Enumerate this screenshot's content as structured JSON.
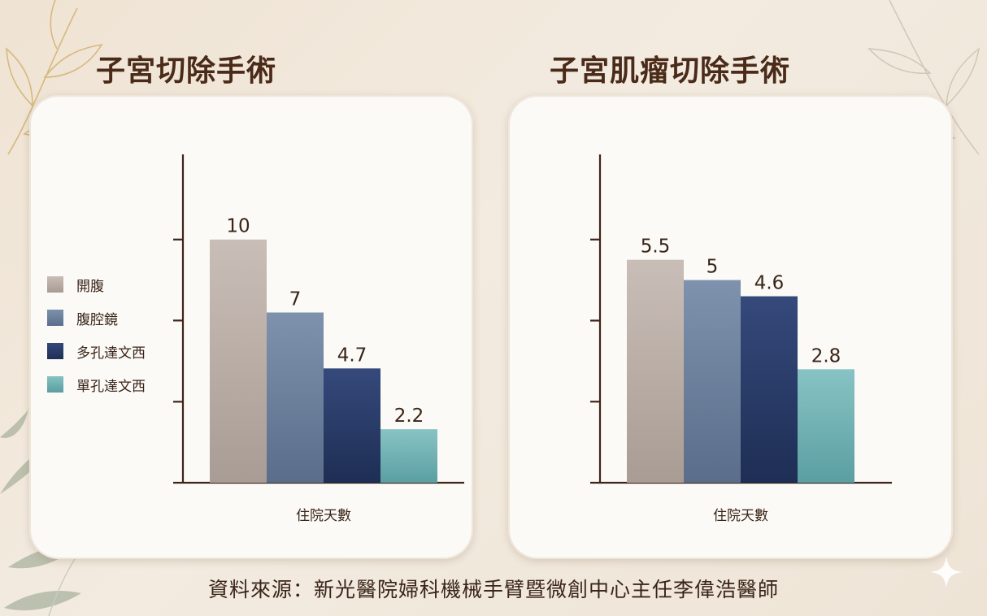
{
  "legend": [
    "開腹",
    "腹腔鏡",
    "多孔達文西",
    "單孔達文西"
  ],
  "colors": {
    "series": [
      "#bdb0a9",
      "#6d819e",
      "#2c3f68",
      "#73b2b4"
    ],
    "axis": "#3e2418",
    "label": "#3a2418"
  },
  "chart_data": [
    {
      "type": "bar",
      "title": "子宮切除手術",
      "xlabel": "住院天數",
      "ylabel": "",
      "categories": [
        "開腹",
        "腹腔鏡",
        "多孔達文西",
        "單孔達文西"
      ],
      "values": [
        10,
        7,
        4.7,
        2.2
      ],
      "value_labels": [
        "10",
        "7",
        "4.7",
        "2.2"
      ],
      "yticks": [
        0,
        3.33,
        6.67,
        10
      ],
      "ylim": [
        0,
        13.5
      ],
      "grid": false,
      "legend_position": "left"
    },
    {
      "type": "bar",
      "title": "子宮肌瘤切除手術",
      "xlabel": "住院天數",
      "ylabel": "",
      "categories": [
        "開腹",
        "腹腔鏡",
        "多孔達文西",
        "單孔達文西"
      ],
      "values": [
        5.5,
        5,
        4.6,
        2.8
      ],
      "value_labels": [
        "5.5",
        "5",
        "4.6",
        "2.8"
      ],
      "yticks": [
        0,
        2,
        4,
        6
      ],
      "ylim": [
        0,
        8.1
      ],
      "grid": false,
      "legend_position": "none"
    }
  ],
  "footer": "資料來源：新光醫院婦科機械手臂暨微創中心主任李偉浩醫師"
}
